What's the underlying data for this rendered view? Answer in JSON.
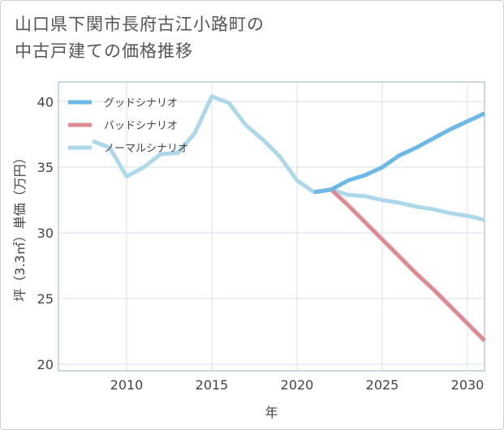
{
  "title": "山口県下関市長府古江小路町の\n中古戸建ての価格推移",
  "chart_data": {
    "type": "line",
    "xlabel": "年",
    "ylabel": "坪（3.3㎡）単価（万円）",
    "xlim": [
      2006,
      2031
    ],
    "ylim": [
      19.5,
      41.5
    ],
    "xticks": [
      2010,
      2015,
      2020,
      2025,
      2030
    ],
    "yticks": [
      20,
      25,
      30,
      35,
      40
    ],
    "grid": true,
    "legend_position": "top-left",
    "series": [
      {
        "name": "グッドシナリオ",
        "color": "#6cb8e8",
        "x": [
          2021,
          2022,
          2023,
          2024,
          2025,
          2026,
          2027,
          2028,
          2029,
          2030,
          2031
        ],
        "y": [
          33.1,
          33.3,
          34.0,
          34.4,
          35.0,
          35.9,
          36.5,
          37.2,
          37.9,
          38.5,
          39.1
        ]
      },
      {
        "name": "バッドシナリオ",
        "color": "#dd8a92",
        "x": [
          2021,
          2022,
          2023,
          2024,
          2025,
          2026,
          2027,
          2028,
          2029,
          2030,
          2031
        ],
        "y": [
          33.1,
          33.3,
          32.1,
          30.8,
          29.5,
          28.2,
          26.9,
          25.7,
          24.4,
          23.1,
          21.8
        ]
      },
      {
        "name": "ノーマルシナリオ",
        "color": "#add8ea",
        "x": [
          2008,
          2009,
          2010,
          2011,
          2012,
          2013,
          2014,
          2015,
          2016,
          2017,
          2018,
          2019,
          2020,
          2021,
          2022,
          2023,
          2024,
          2025,
          2026,
          2027,
          2028,
          2029,
          2030,
          2031
        ],
        "y": [
          37.0,
          36.5,
          34.3,
          35.0,
          36.0,
          36.1,
          37.6,
          40.4,
          39.9,
          38.2,
          37.1,
          35.8,
          34.0,
          33.1,
          33.3,
          32.9,
          32.8,
          32.5,
          32.3,
          32.0,
          31.8,
          31.5,
          31.3,
          31.0
        ]
      }
    ]
  }
}
